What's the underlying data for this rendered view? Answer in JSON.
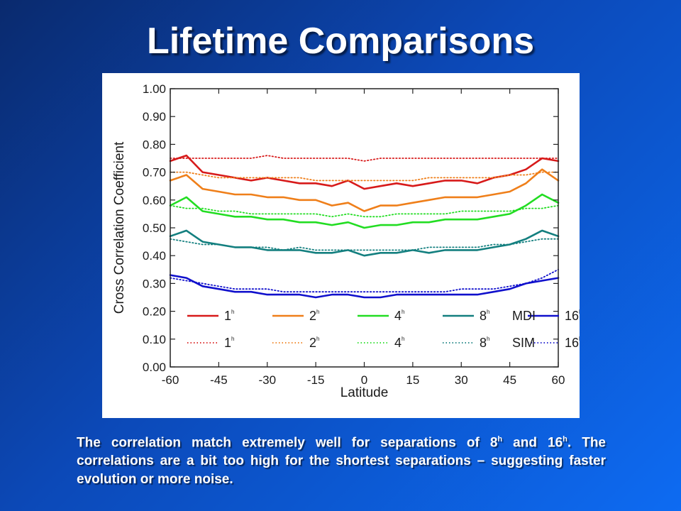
{
  "slide": {
    "title": "Lifetime Comparisons",
    "caption": {
      "part1": "The correlation match extremely well for separations of 8",
      "sup1": "h",
      "part2": " and 16",
      "sup2": "h",
      "part3": ". The correlations are a bit too high for the shortest separations – suggesting faster evolution or more noise."
    }
  },
  "chart_data": {
    "type": "line",
    "title": "",
    "xlabel": "Latitude",
    "ylabel": "Cross Correlation Coefficient",
    "xlim": [
      -60,
      60
    ],
    "ylim": [
      0.0,
      1.0
    ],
    "xticks": [
      -60,
      -45,
      -30,
      -15,
      0,
      15,
      30,
      45,
      60
    ],
    "xtick_labels": [
      "-60",
      "-45",
      "-30",
      "-15",
      "0",
      "15",
      "30",
      "45",
      "60"
    ],
    "yticks": [
      0.0,
      0.1,
      0.2,
      0.3,
      0.4,
      0.5,
      0.6,
      0.7,
      0.8,
      0.9,
      1.0
    ],
    "ytick_labels": [
      "0.00",
      "0.10",
      "0.20",
      "0.30",
      "0.40",
      "0.50",
      "0.60",
      "0.70",
      "0.80",
      "0.90",
      "1.00"
    ],
    "grid": false,
    "legend_position": "bottom",
    "legend_groups": [
      "MDI",
      "SIM"
    ],
    "x": [
      -60,
      -55,
      -50,
      -45,
      -40,
      -35,
      -30,
      -25,
      -20,
      -15,
      -10,
      -5,
      0,
      5,
      10,
      15,
      20,
      25,
      30,
      35,
      40,
      45,
      50,
      55,
      60
    ],
    "series": [
      {
        "label": "1",
        "sup": "h",
        "group": "MDI",
        "style": "solid",
        "color": "#d71a1a",
        "values": [
          0.74,
          0.76,
          0.7,
          0.69,
          0.68,
          0.67,
          0.68,
          0.67,
          0.66,
          0.66,
          0.65,
          0.67,
          0.64,
          0.65,
          0.66,
          0.65,
          0.66,
          0.67,
          0.67,
          0.66,
          0.68,
          0.69,
          0.71,
          0.75,
          0.74
        ]
      },
      {
        "label": "2",
        "sup": "h",
        "group": "MDI",
        "style": "solid",
        "color": "#ef7f1a",
        "values": [
          0.67,
          0.69,
          0.64,
          0.63,
          0.62,
          0.62,
          0.61,
          0.61,
          0.6,
          0.6,
          0.58,
          0.59,
          0.56,
          0.58,
          0.58,
          0.59,
          0.6,
          0.61,
          0.61,
          0.61,
          0.62,
          0.63,
          0.66,
          0.71,
          0.67
        ]
      },
      {
        "label": "4",
        "sup": "h",
        "group": "MDI",
        "style": "solid",
        "color": "#22dd22",
        "values": [
          0.58,
          0.61,
          0.56,
          0.55,
          0.54,
          0.54,
          0.53,
          0.53,
          0.52,
          0.52,
          0.51,
          0.52,
          0.5,
          0.51,
          0.51,
          0.52,
          0.52,
          0.53,
          0.53,
          0.53,
          0.54,
          0.55,
          0.58,
          0.62,
          0.59
        ]
      },
      {
        "label": "8",
        "sup": "h",
        "group": "MDI",
        "style": "solid",
        "color": "#137f7f",
        "values": [
          0.47,
          0.49,
          0.45,
          0.44,
          0.43,
          0.43,
          0.42,
          0.42,
          0.42,
          0.41,
          0.41,
          0.42,
          0.4,
          0.41,
          0.41,
          0.42,
          0.41,
          0.42,
          0.42,
          0.42,
          0.43,
          0.44,
          0.46,
          0.49,
          0.47
        ]
      },
      {
        "label": "16",
        "sup": "h",
        "group": "MDI",
        "style": "solid",
        "color": "#1010cc",
        "values": [
          0.33,
          0.32,
          0.29,
          0.28,
          0.27,
          0.27,
          0.26,
          0.26,
          0.26,
          0.25,
          0.26,
          0.26,
          0.25,
          0.25,
          0.26,
          0.26,
          0.26,
          0.26,
          0.26,
          0.26,
          0.27,
          0.28,
          0.3,
          0.31,
          0.32
        ]
      },
      {
        "label": "1",
        "sup": "h",
        "group": "SIM",
        "style": "dotted",
        "color": "#d71a1a",
        "values": [
          0.75,
          0.75,
          0.75,
          0.75,
          0.75,
          0.75,
          0.76,
          0.75,
          0.75,
          0.75,
          0.75,
          0.75,
          0.74,
          0.75,
          0.75,
          0.75,
          0.75,
          0.75,
          0.75,
          0.75,
          0.75,
          0.75,
          0.75,
          0.75,
          0.75
        ]
      },
      {
        "label": "2",
        "sup": "h",
        "group": "SIM",
        "style": "dotted",
        "color": "#ef7f1a",
        "values": [
          0.7,
          0.7,
          0.69,
          0.68,
          0.68,
          0.68,
          0.68,
          0.68,
          0.68,
          0.67,
          0.67,
          0.67,
          0.67,
          0.67,
          0.67,
          0.67,
          0.68,
          0.68,
          0.68,
          0.68,
          0.68,
          0.69,
          0.69,
          0.7,
          0.7
        ]
      },
      {
        "label": "4",
        "sup": "h",
        "group": "SIM",
        "style": "dotted",
        "color": "#22dd22",
        "values": [
          0.58,
          0.57,
          0.57,
          0.56,
          0.56,
          0.55,
          0.55,
          0.55,
          0.55,
          0.55,
          0.54,
          0.55,
          0.54,
          0.54,
          0.55,
          0.55,
          0.55,
          0.55,
          0.56,
          0.56,
          0.56,
          0.56,
          0.57,
          0.57,
          0.58
        ]
      },
      {
        "label": "8",
        "sup": "h",
        "group": "SIM",
        "style": "dotted",
        "color": "#137f7f",
        "values": [
          0.46,
          0.45,
          0.44,
          0.44,
          0.43,
          0.43,
          0.43,
          0.42,
          0.43,
          0.42,
          0.42,
          0.42,
          0.42,
          0.42,
          0.42,
          0.42,
          0.43,
          0.43,
          0.43,
          0.43,
          0.44,
          0.44,
          0.45,
          0.46,
          0.46
        ]
      },
      {
        "label": "16",
        "sup": "h",
        "group": "SIM",
        "style": "dotted",
        "color": "#1010cc",
        "values": [
          0.32,
          0.31,
          0.3,
          0.29,
          0.28,
          0.28,
          0.28,
          0.27,
          0.27,
          0.27,
          0.27,
          0.27,
          0.27,
          0.27,
          0.27,
          0.27,
          0.27,
          0.27,
          0.28,
          0.28,
          0.28,
          0.29,
          0.3,
          0.32,
          0.35
        ]
      }
    ]
  }
}
